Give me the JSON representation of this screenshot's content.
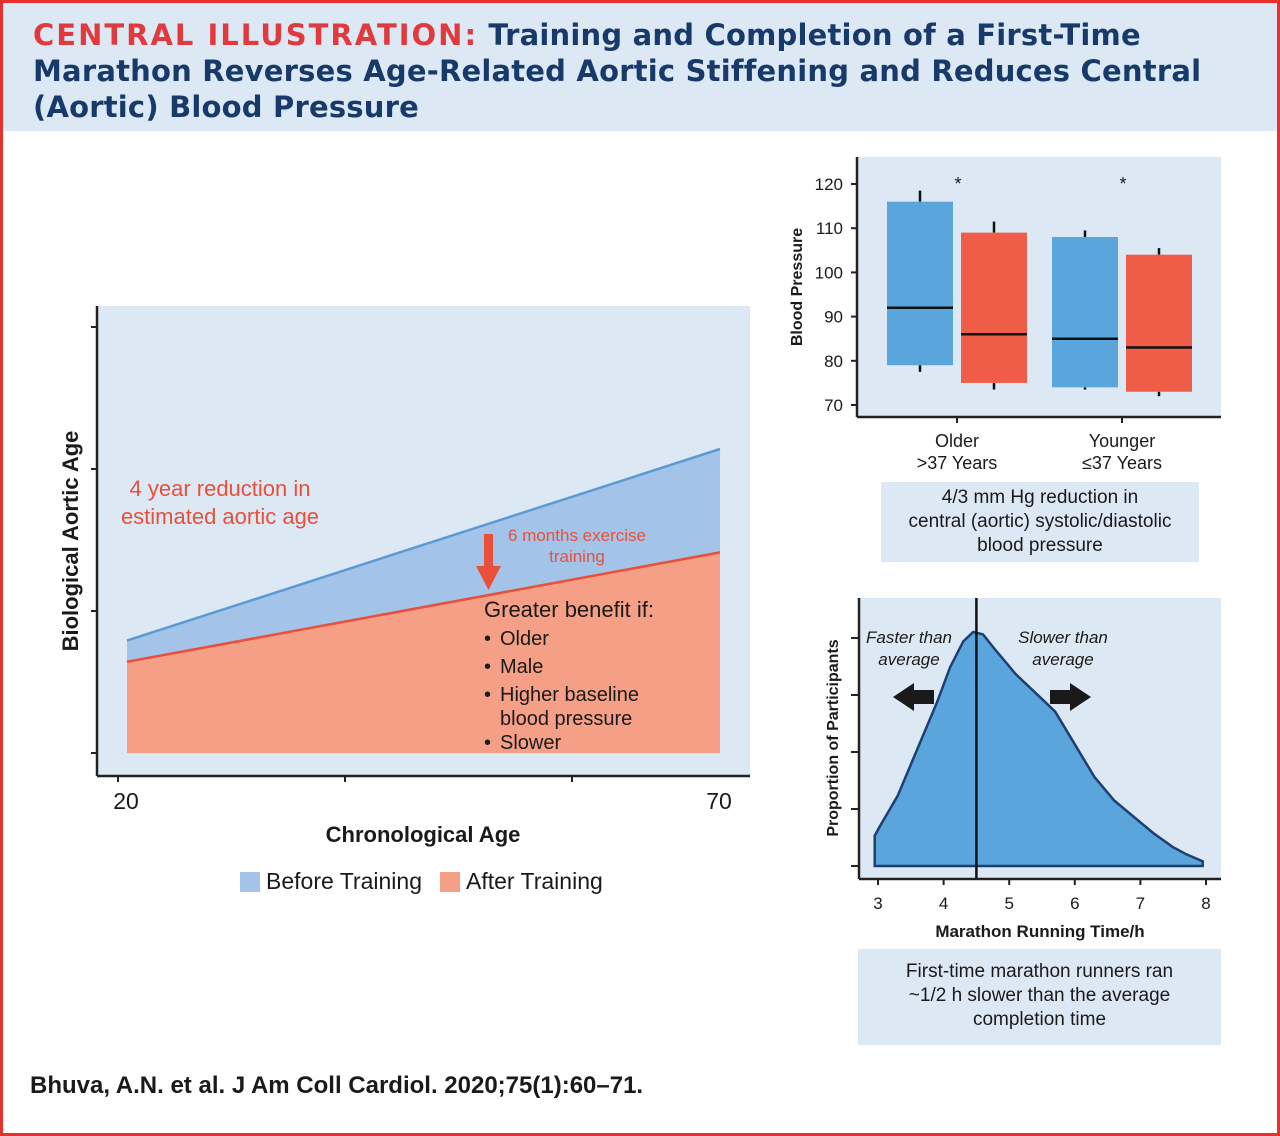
{
  "header": {
    "tag": "CENTRAL ILLUSTRATION:",
    "title": "Training and Completion of a First-Time Marathon Reverses Age-Related Aortic Stiffening and Reduces Central (Aortic) Blood Pressure"
  },
  "citation": "Bhuva, A.N. et al. J Am Coll Cardiol. 2020;75(1):60–71.",
  "colors": {
    "accent_red": "#e03a3e",
    "title_navy": "#173a6b",
    "panel_bg": "#dde8f5",
    "before": "#a3c4e8",
    "after": "#f5a086",
    "box_blue": "#5aa5dc",
    "box_red": "#ef5c47"
  },
  "chart_data": [
    {
      "type": "area",
      "xlabel": "Chronological Age",
      "ylabel": "Biological Aortic Age",
      "x_ticks": [
        "20",
        "70"
      ],
      "xlim": [
        20,
        70
      ],
      "series": [
        {
          "name": "Before Training",
          "x": [
            20,
            70
          ],
          "y_relative": [
            0.37,
            1.0
          ]
        },
        {
          "name": "After Training",
          "x": [
            20,
            70
          ],
          "y_relative": [
            0.3,
            0.66
          ]
        }
      ],
      "annotations": {
        "reduction": [
          "4 year reduction in",
          "estimated aortic age"
        ],
        "training": [
          "6 months exercise",
          "training"
        ],
        "benefit_heading": "Greater benefit if:",
        "benefit_items": [
          "Older",
          "Male",
          "Higher baseline",
          "blood pressure",
          "Slower"
        ]
      },
      "legend": [
        "Before Training",
        "After Training"
      ]
    },
    {
      "type": "box",
      "ylabel": "Blood Pressure",
      "ylim": [
        68,
        124
      ],
      "y_ticks": [
        70,
        80,
        90,
        100,
        110,
        120
      ],
      "categories": [
        "Older\n>37 Years",
        "Younger\n≤37 Years"
      ],
      "category_lines": [
        [
          "Older",
          ">37 Years"
        ],
        [
          "Younger",
          "≤37 Years"
        ]
      ],
      "series": [
        {
          "name": "Before Training",
          "boxes": [
            {
              "q1": 79,
              "median": 92,
              "q3": 116,
              "whisker_low": 77.5,
              "whisker_high": 118.5
            },
            {
              "q1": 74,
              "median": 85,
              "q3": 108,
              "whisker_low": 73.5,
              "whisker_high": 109.5
            }
          ]
        },
        {
          "name": "After Training",
          "boxes": [
            {
              "q1": 75,
              "median": 86,
              "q3": 109,
              "whisker_low": 73.5,
              "whisker_high": 111.5
            },
            {
              "q1": 73,
              "median": 83,
              "q3": 104,
              "whisker_low": 72,
              "whisker_high": 105.5
            }
          ]
        }
      ],
      "significance": [
        "*",
        "*"
      ],
      "caption": [
        "4/3 mm Hg reduction in",
        "central (aortic) systolic/diastolic",
        "blood pressure"
      ]
    },
    {
      "type": "area",
      "xlabel": "Marathon Running Time/h",
      "ylabel": "Proportion of Participants",
      "xlim": [
        2.7,
        8.0
      ],
      "x_ticks": [
        3,
        4,
        5,
        6,
        7,
        8
      ],
      "average_line": 4.5,
      "distribution": {
        "x": [
          2.95,
          3.05,
          3.3,
          3.6,
          3.9,
          4.1,
          4.3,
          4.45,
          4.6,
          4.8,
          5.1,
          5.4,
          5.7,
          6.0,
          6.3,
          6.6,
          6.9,
          7.2,
          7.5,
          7.7,
          7.95
        ],
        "y": [
          0.13,
          0.18,
          0.3,
          0.5,
          0.7,
          0.85,
          0.96,
          1.0,
          0.99,
          0.92,
          0.82,
          0.74,
          0.66,
          0.52,
          0.38,
          0.28,
          0.21,
          0.14,
          0.08,
          0.05,
          0.02
        ]
      },
      "annotations": {
        "faster": [
          "Faster than",
          "average"
        ],
        "slower": [
          "Slower than",
          "average"
        ]
      },
      "caption": [
        "First-time marathon runners ran",
        "~1/2 h slower than the average",
        "completion time"
      ]
    }
  ]
}
